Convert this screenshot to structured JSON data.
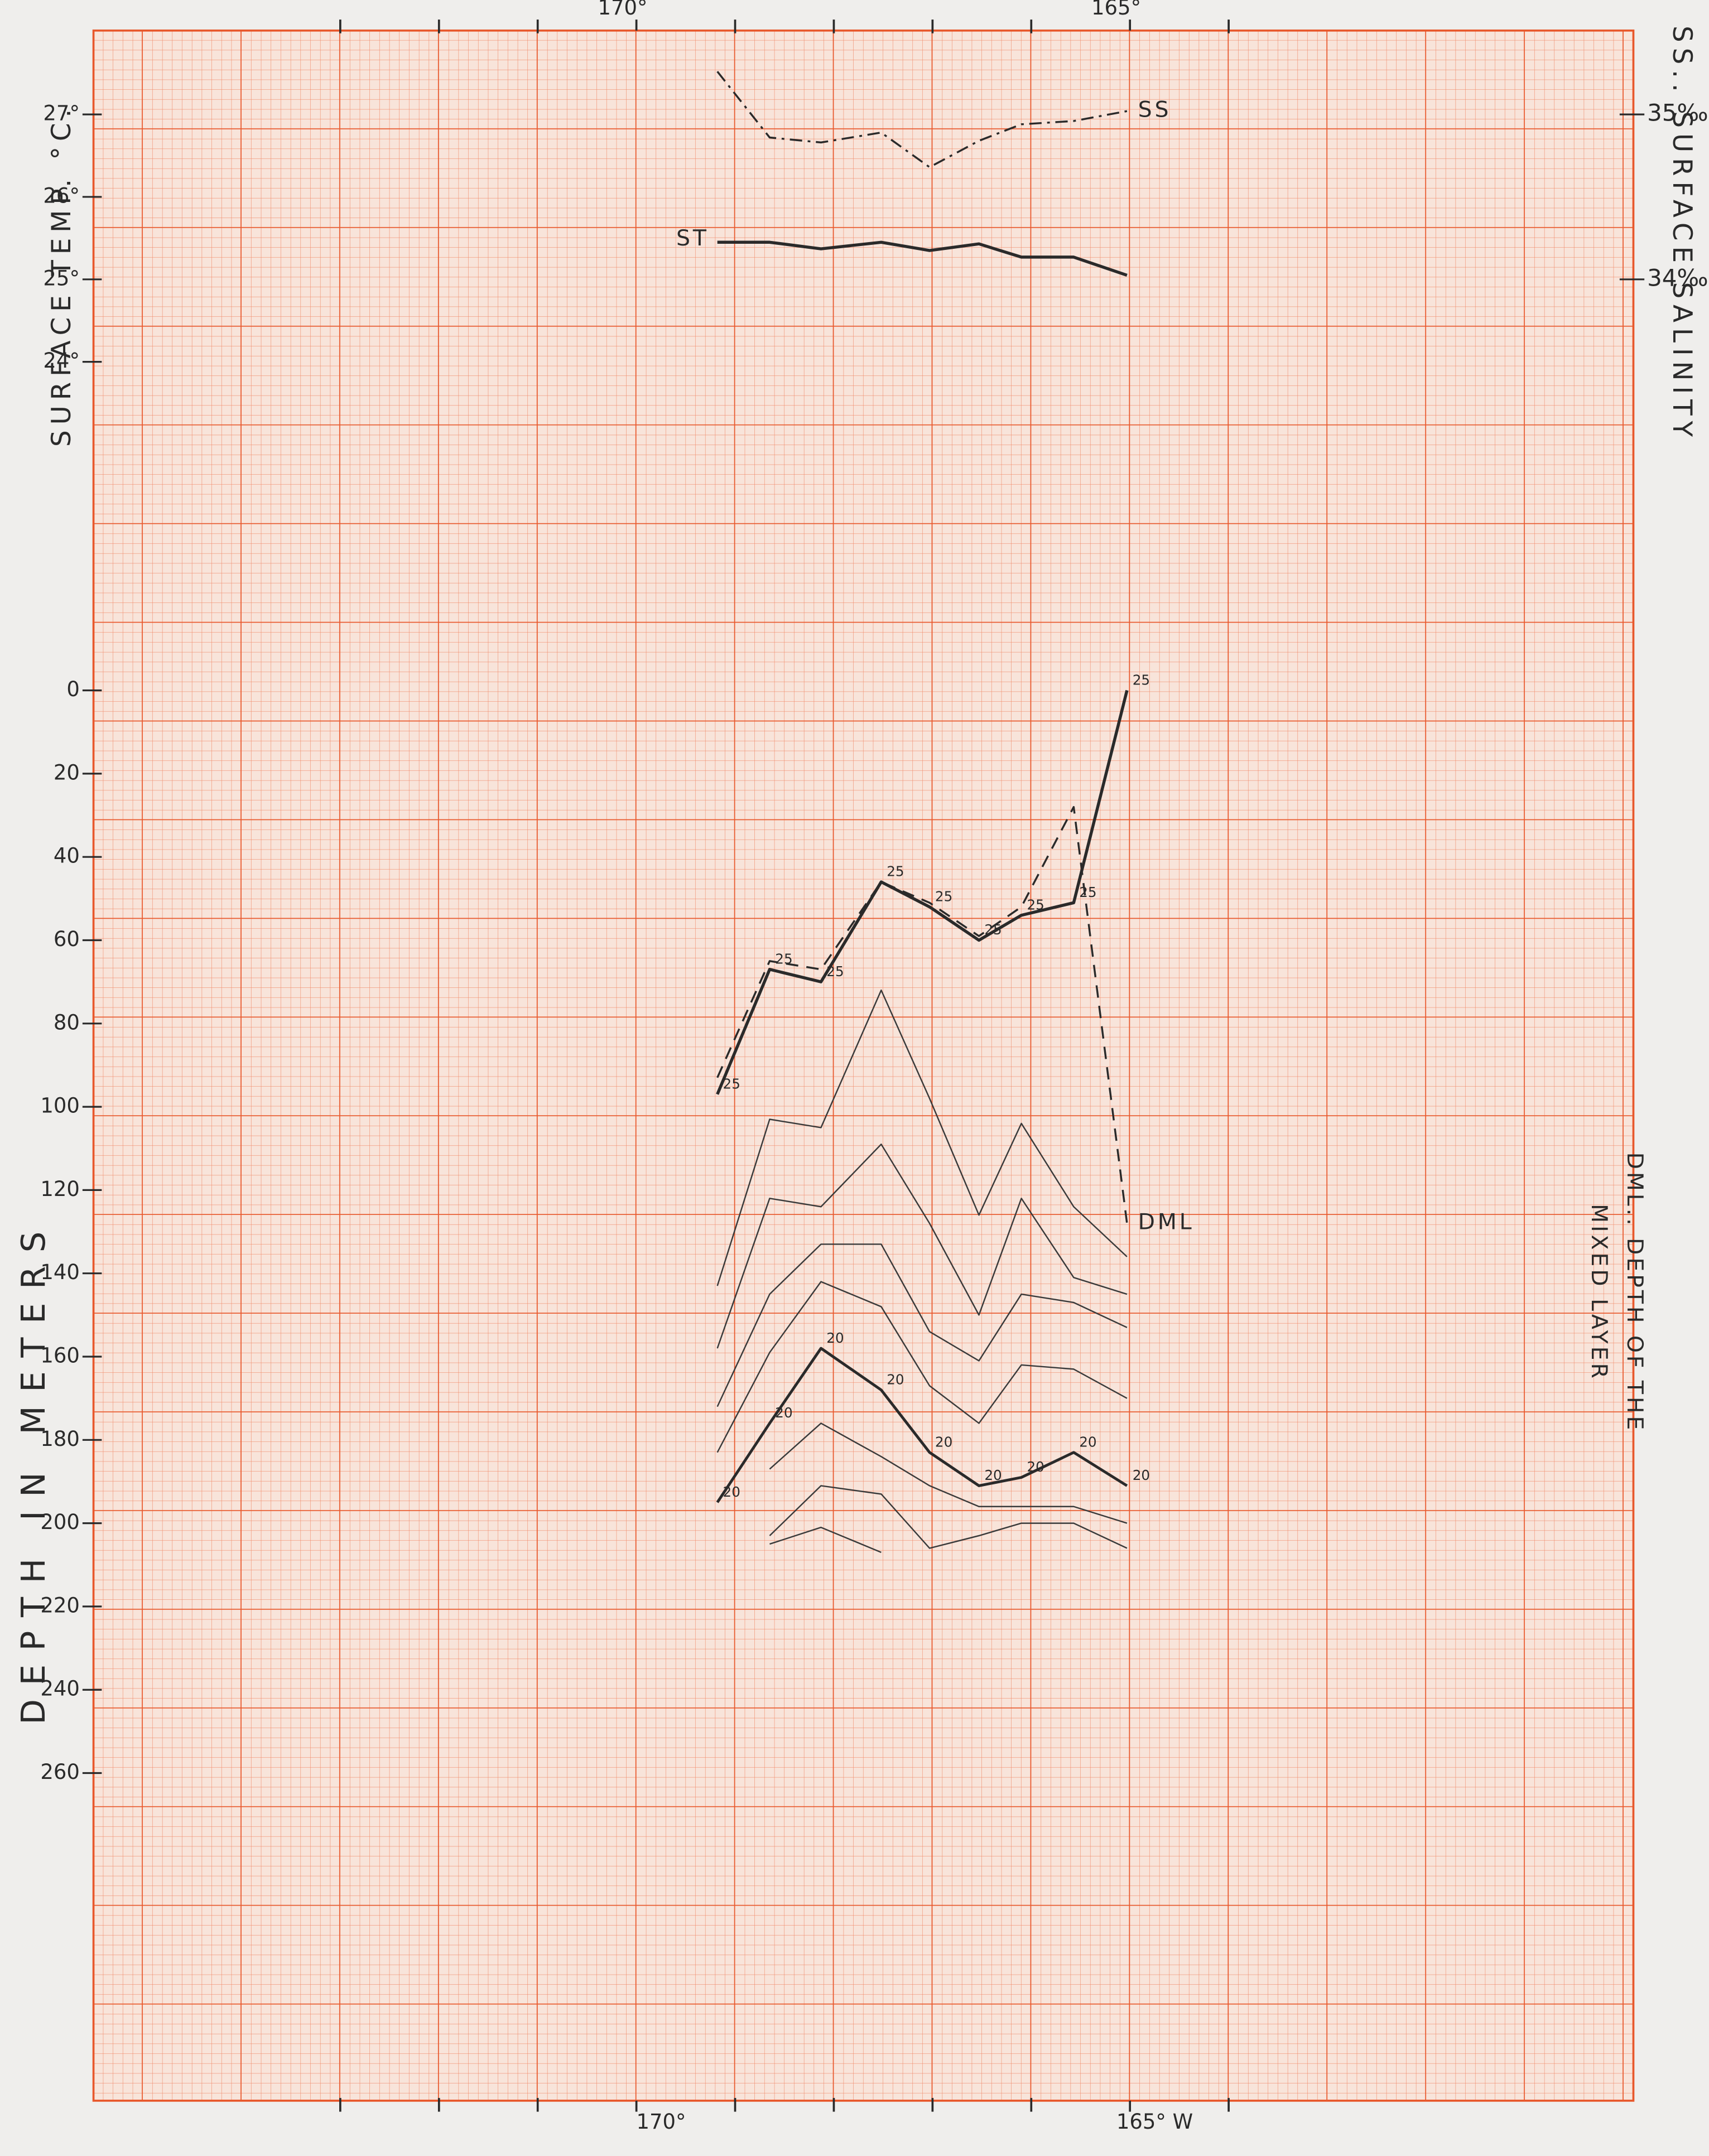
{
  "chart_data": [
    {
      "type": "line",
      "xlim": [
        175.5,
        159.9
      ],
      "x": [
        169.18,
        168.65,
        168.13,
        167.52,
        167.03,
        166.53,
        166.1,
        165.57,
        165.03
      ],
      "xticks": [
        {
          "value": 170,
          "label": "170°"
        },
        {
          "value": 165,
          "label": "165°"
        }
      ],
      "xminor_ticks": [
        173,
        172,
        171,
        169,
        168,
        167,
        166,
        164
      ],
      "ylabel": "SURFACE TEMP. °C.",
      "ylim": [
        23,
        28
      ],
      "yticks": [
        {
          "value": 24,
          "label": "24°"
        },
        {
          "value": 25,
          "label": "25°"
        },
        {
          "value": 26,
          "label": "26°"
        },
        {
          "value": 27,
          "label": "27°"
        }
      ],
      "y2label": "SS.. SURFACE SALINITY",
      "y2lim": [
        33,
        35.5
      ],
      "y2ticks": [
        {
          "value": 34,
          "label": "34‰"
        },
        {
          "value": 35,
          "label": "35‰"
        }
      ],
      "series": [
        {
          "name": "ST",
          "color": "#2a2a2a",
          "width": 2.2,
          "dash": "solid",
          "label_at": "start",
          "values": [
            25.45,
            25.45,
            25.37,
            25.45,
            25.35,
            25.43,
            25.27,
            25.27,
            25.05
          ]
        },
        {
          "name": "SS",
          "color": "#2a2a2a",
          "width": 1.4,
          "dash": "dash-dot",
          "axis": "y2",
          "label_at": "end",
          "values": [
            35.26,
            34.86,
            34.83,
            34.89,
            34.68,
            34.84,
            34.94,
            34.96,
            35.02
          ]
        }
      ]
    },
    {
      "type": "line",
      "xlim": [
        175.5,
        159.9
      ],
      "x": [
        169.18,
        168.65,
        168.13,
        167.52,
        167.03,
        166.53,
        166.1,
        165.57,
        165.03
      ],
      "xticks": [
        {
          "value": 170,
          "label": "170°"
        },
        {
          "value": 165,
          "label": "165° W"
        }
      ],
      "xminor_ticks": [
        173,
        172,
        171,
        169,
        168,
        167,
        166,
        164
      ],
      "ylabel": "DEPTH IN METERS",
      "ylim": [
        0,
        340
      ],
      "y_inverted": true,
      "yticks": [
        0,
        20,
        40,
        60,
        80,
        100,
        120,
        140,
        160,
        180,
        200,
        220,
        240,
        260
      ],
      "y2label": [
        "DML.. DEPTH OF THE",
        "MIXED LAYER"
      ],
      "series": [
        {
          "color": "#2a2a2a",
          "width": 2.2,
          "dash": "solid",
          "point_label": "25",
          "values": [
            97,
            67,
            70,
            46,
            52,
            60,
            54,
            51,
            0
          ]
        },
        {
          "name": "DML",
          "color": "#2a2a2a",
          "width": 1.4,
          "dash": "dashed",
          "label_at": "end",
          "values": [
            93,
            65,
            67,
            46,
            51,
            59,
            52,
            28,
            128
          ]
        },
        {
          "color": "#3a3a3a",
          "width": 1,
          "dash": "solid",
          "values": [
            143,
            103,
            105,
            72,
            98,
            126,
            104,
            124,
            136
          ]
        },
        {
          "color": "#3a3a3a",
          "width": 1,
          "dash": "solid",
          "values": [
            158,
            122,
            124,
            109,
            128,
            150,
            122,
            141,
            145
          ]
        },
        {
          "color": "#3a3a3a",
          "width": 1,
          "dash": "solid",
          "values": [
            172,
            145,
            133,
            133,
            154,
            161,
            145,
            147,
            153
          ]
        },
        {
          "color": "#3a3a3a",
          "width": 1,
          "dash": "solid",
          "values": [
            183,
            159,
            142,
            148,
            167,
            176,
            162,
            163,
            170
          ]
        },
        {
          "color": "#2a2a2a",
          "width": 2,
          "dash": "solid",
          "point_label": "20",
          "values": [
            195,
            176,
            158,
            168,
            183,
            191,
            189,
            183,
            191
          ]
        },
        {
          "color": "#3a3a3a",
          "width": 1,
          "dash": "solid",
          "values": [
            null,
            187,
            176,
            184,
            191,
            196,
            196,
            196,
            200
          ]
        },
        {
          "color": "#3a3a3a",
          "width": 1,
          "dash": "solid",
          "values": [
            null,
            203,
            191,
            193,
            206,
            203,
            200,
            200,
            206
          ]
        },
        {
          "color": "#3a3a3a",
          "width": 1,
          "dash": "solid",
          "values": [
            null,
            205,
            201,
            207,
            null,
            null,
            null,
            null,
            null
          ]
        }
      ]
    }
  ]
}
